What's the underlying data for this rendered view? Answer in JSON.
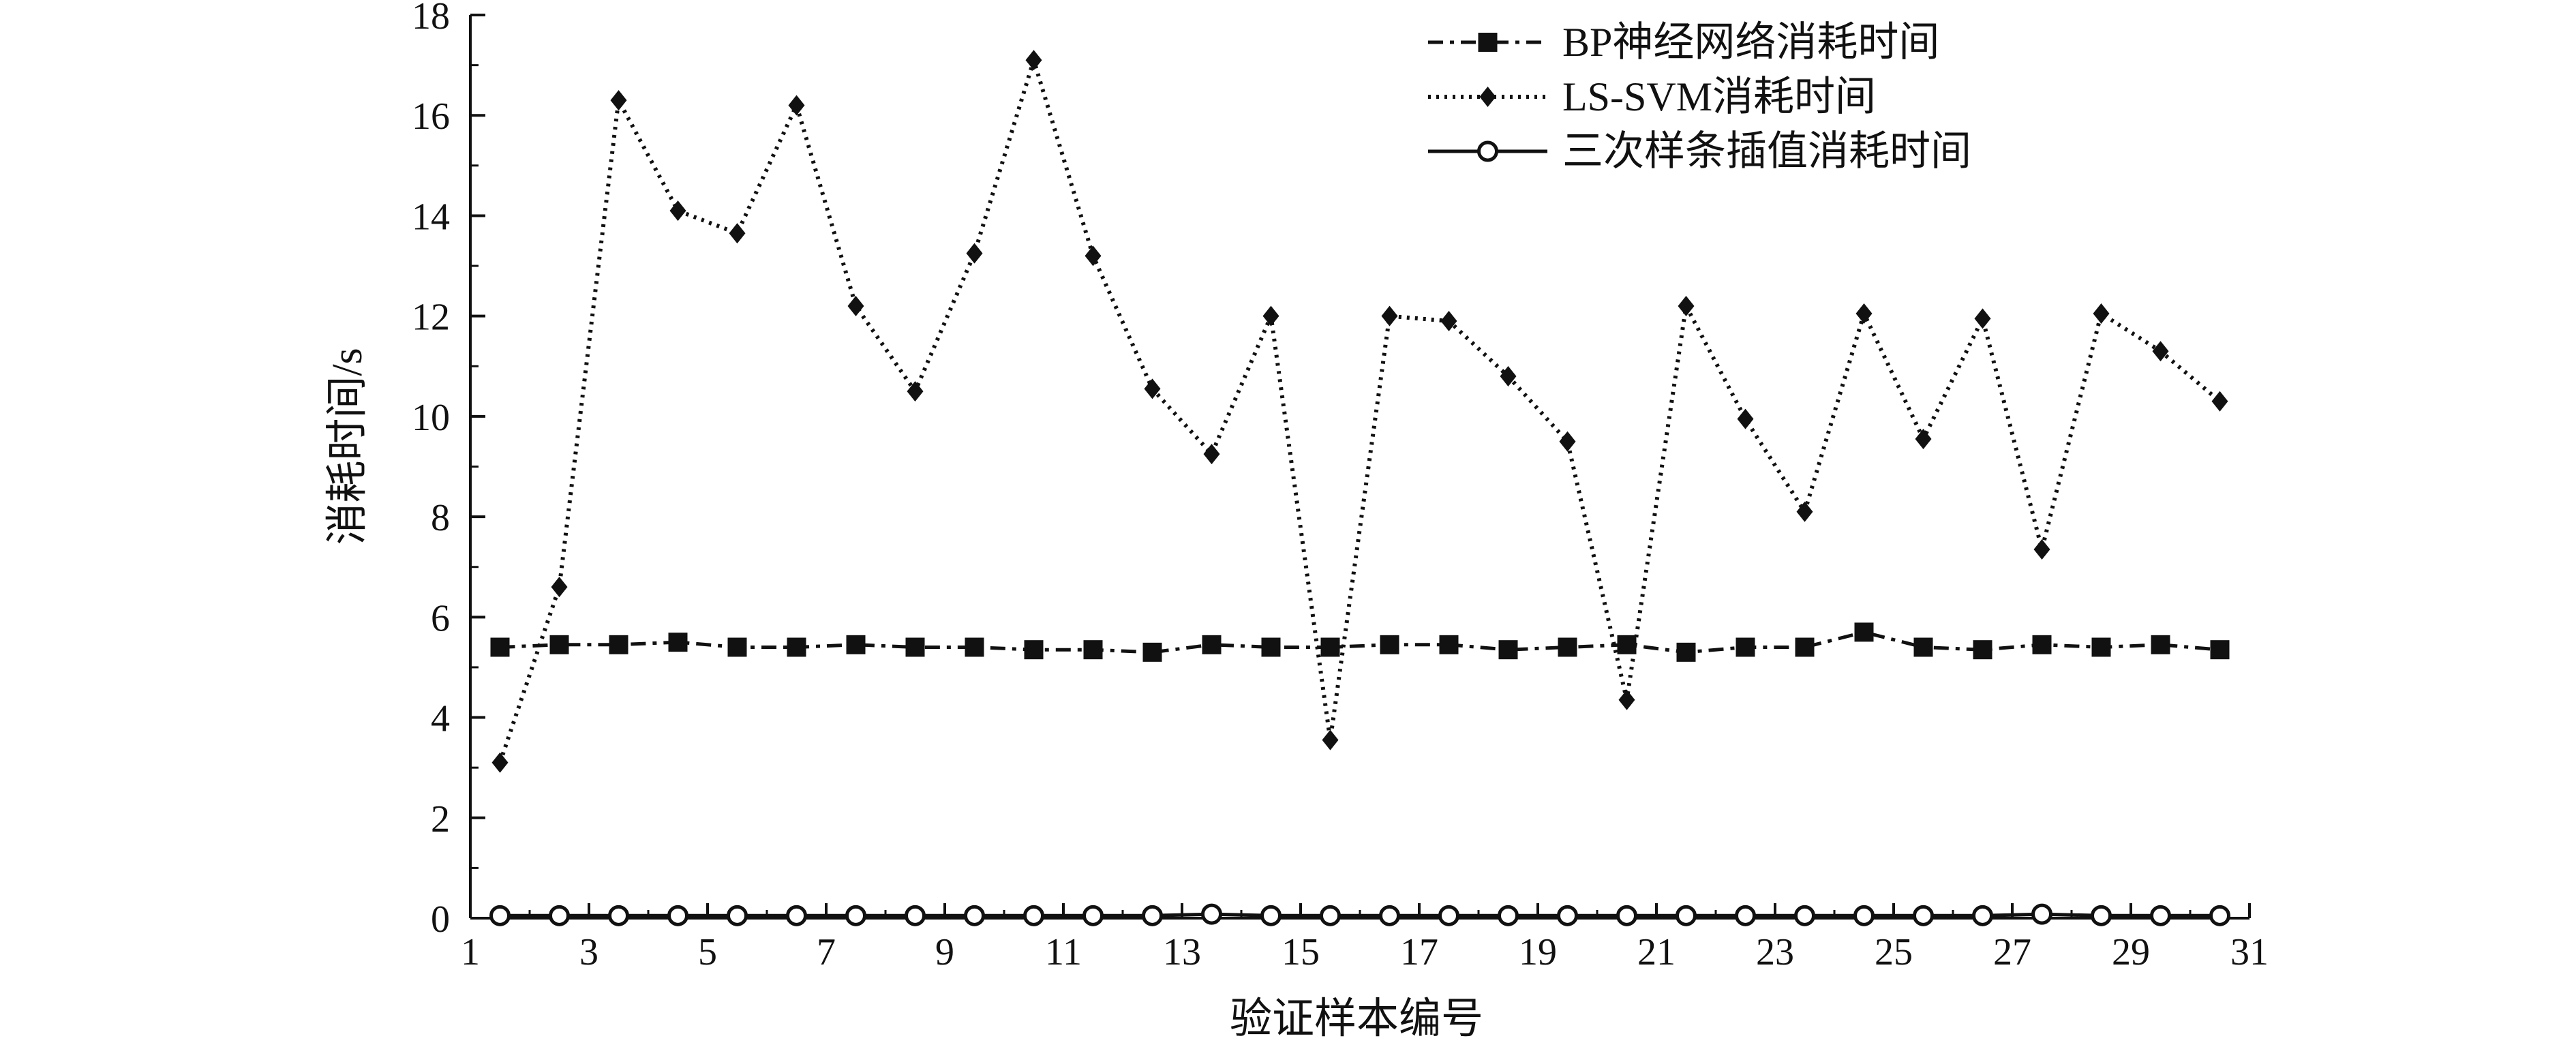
{
  "chart_data": {
    "type": "line",
    "xlabel": "验证样本编号",
    "ylabel": "消耗时间/s",
    "xlim": [
      1,
      31
    ],
    "ylim": [
      0,
      18
    ],
    "x_ticks": [
      "1",
      "3",
      "5",
      "7",
      "9",
      "11",
      "13",
      "15",
      "17",
      "19",
      "21",
      "23",
      "25",
      "27",
      "29",
      "31"
    ],
    "y_ticks": [
      "0",
      "2",
      "4",
      "6",
      "8",
      "10",
      "12",
      "14",
      "16",
      "18"
    ],
    "grid": false,
    "legend_position": "top-right",
    "x": [
      1.5,
      2.5,
      3.5,
      4.5,
      5.5,
      6.5,
      7.5,
      8.5,
      9.5,
      10.5,
      11.5,
      12.5,
      13.5,
      14.5,
      15.5,
      16.5,
      17.5,
      18.5,
      19.5,
      20.5,
      21.5,
      22.5,
      23.5,
      24.5,
      25.5,
      26.5,
      27.5,
      28.5,
      29.5,
      30.5
    ],
    "series": [
      {
        "name": "BP神经网络消耗时间",
        "style": "dashdot-square",
        "color": "#111111",
        "values": [
          5.4,
          5.45,
          5.45,
          5.5,
          5.4,
          5.4,
          5.45,
          5.4,
          5.4,
          5.35,
          5.35,
          5.3,
          5.45,
          5.4,
          5.4,
          5.45,
          5.45,
          5.35,
          5.4,
          5.45,
          5.3,
          5.4,
          5.4,
          5.7,
          5.4,
          5.35,
          5.45,
          5.4,
          5.45,
          5.35
        ]
      },
      {
        "name": "LS-SVM消耗时间",
        "style": "dotted-diamond",
        "color": "#111111",
        "values": [
          3.1,
          6.6,
          16.3,
          14.1,
          13.65,
          16.2,
          12.2,
          10.5,
          13.25,
          17.1,
          13.2,
          10.55,
          9.25,
          12.0,
          3.55,
          12.0,
          11.9,
          10.8,
          9.5,
          4.35,
          12.2,
          9.95,
          8.1,
          12.05,
          9.55,
          11.95,
          7.35,
          12.05,
          11.3,
          10.3
        ]
      },
      {
        "name": "三次样条插值消耗时间",
        "style": "solid-circle",
        "color": "#111111",
        "values": [
          0.05,
          0.05,
          0.05,
          0.05,
          0.05,
          0.05,
          0.05,
          0.05,
          0.05,
          0.05,
          0.05,
          0.05,
          0.08,
          0.05,
          0.05,
          0.05,
          0.05,
          0.05,
          0.05,
          0.05,
          0.05,
          0.05,
          0.05,
          0.05,
          0.05,
          0.05,
          0.08,
          0.05,
          0.05,
          0.05
        ]
      }
    ]
  }
}
